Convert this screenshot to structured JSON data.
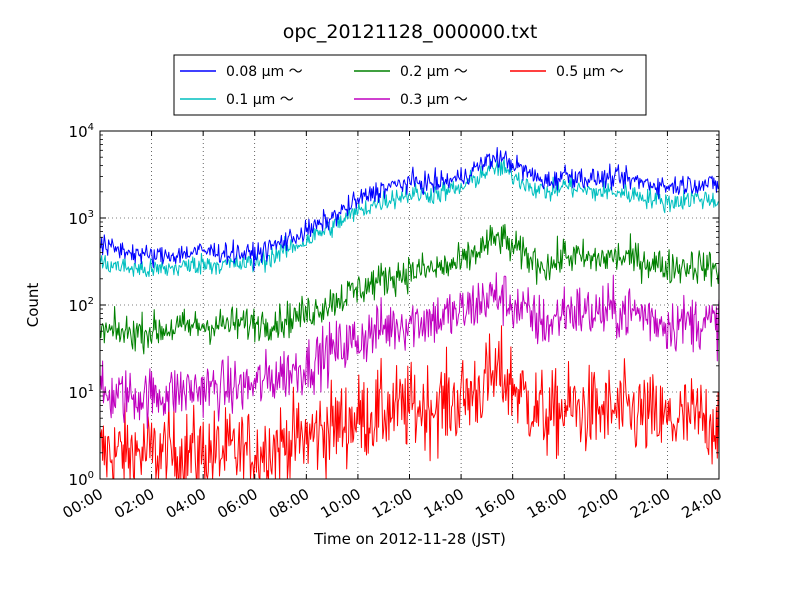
{
  "chart_data": {
    "type": "line",
    "title": "opc_20121128_000000.txt",
    "xlabel": "Time on 2012-11-28 (JST)",
    "ylabel": "Count",
    "x_unit": "hour",
    "xlim": [
      0,
      24
    ],
    "ylim": [
      1,
      10000
    ],
    "yscale": "log",
    "grid": true,
    "legend_position": "top",
    "x_ticks": [
      "00:00",
      "02:00",
      "04:00",
      "06:00",
      "08:00",
      "10:00",
      "12:00",
      "14:00",
      "16:00",
      "18:00",
      "20:00",
      "22:00",
      "24:00"
    ],
    "y_ticks": [
      {
        "base": "10",
        "exp": "0"
      },
      {
        "base": "10",
        "exp": "1"
      },
      {
        "base": "10",
        "exp": "2"
      },
      {
        "base": "10",
        "exp": "3"
      },
      {
        "base": "10",
        "exp": "4"
      }
    ],
    "x": [
      0,
      1,
      2,
      3,
      4,
      5,
      6,
      7,
      8,
      9,
      10,
      11,
      12,
      13,
      14,
      15,
      15.5,
      16,
      17,
      17.5,
      18,
      19,
      20,
      21,
      22,
      23,
      24
    ],
    "series": [
      {
        "name": "0.08 μm ～",
        "color": "#0000ff",
        "noise": 0.06,
        "values": [
          480,
          420,
          360,
          380,
          420,
          400,
          380,
          520,
          700,
          1000,
          1600,
          2200,
          2600,
          2500,
          2900,
          4500,
          5000,
          4200,
          2800,
          2600,
          3200,
          2800,
          2900,
          2600,
          2300,
          2500,
          2400
        ]
      },
      {
        "name": "0.1 μm ～",
        "color": "#00bfbf",
        "noise": 0.06,
        "values": [
          300,
          270,
          250,
          270,
          300,
          290,
          300,
          400,
          550,
          800,
          1200,
          1600,
          1900,
          1900,
          2200,
          3500,
          3800,
          3100,
          2100,
          2000,
          2400,
          2000,
          2000,
          1800,
          1500,
          1700,
          1600
        ]
      },
      {
        "name": "0.2 μm ～",
        "color": "#008000",
        "noise": 0.1,
        "values": [
          50,
          48,
          50,
          55,
          58,
          60,
          62,
          65,
          80,
          110,
          150,
          200,
          240,
          260,
          300,
          500,
          600,
          450,
          300,
          280,
          380,
          330,
          360,
          330,
          270,
          290,
          260
        ]
      },
      {
        "name": "0.3 μm ～",
        "color": "#bf00bf",
        "noise": 0.16,
        "values": [
          9,
          9,
          9,
          10,
          11,
          11,
          12,
          16,
          20,
          30,
          40,
          55,
          65,
          70,
          80,
          120,
          130,
          100,
          65,
          60,
          90,
          80,
          85,
          80,
          60,
          65,
          60
        ]
      },
      {
        "name": "0.5 μm ～",
        "color": "#ff0000",
        "noise": 0.25,
        "values": [
          2,
          2,
          2,
          2,
          2,
          2,
          2,
          2.5,
          3,
          4,
          5,
          6,
          6.5,
          7,
          8,
          13,
          16,
          12,
          6,
          5,
          6.5,
          6,
          6,
          5.5,
          4.5,
          5,
          4.5
        ]
      }
    ]
  }
}
